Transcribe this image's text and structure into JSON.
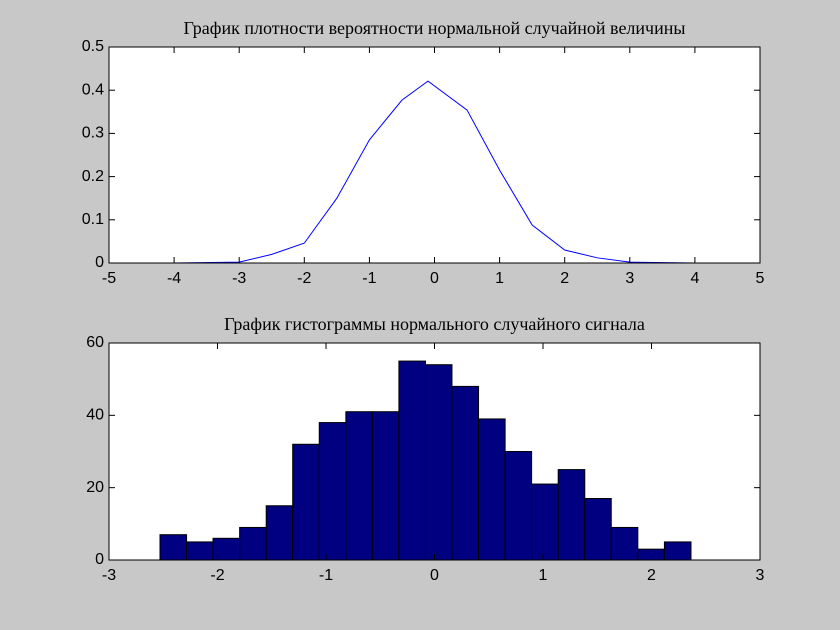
{
  "chart_data": [
    {
      "type": "line",
      "title": "График плотности вероятности нормальной случайной величины",
      "x": [
        -5,
        -4,
        -3,
        -2.5,
        -2,
        -1.5,
        -1,
        -0.5,
        -0.1,
        0.5,
        1,
        1.5,
        2,
        2.5,
        3,
        4,
        5
      ],
      "values": [
        0,
        0,
        0.002,
        0.02,
        0.046,
        0.15,
        0.285,
        0.377,
        0.421,
        0.354,
        0.215,
        0.088,
        0.03,
        0.012,
        0.002,
        0,
        0
      ],
      "color": "#0000ff",
      "xlim": [
        -5,
        5
      ],
      "xticks": [
        -5,
        -4,
        -3,
        -2,
        -1,
        0,
        1,
        2,
        3,
        4,
        5
      ],
      "ylim": [
        0,
        0.5
      ],
      "yticks": [
        0,
        0.1,
        0.2,
        0.3,
        0.4,
        0.5
      ]
    },
    {
      "type": "histogram",
      "title": "График гистограммы нормального случайного сигнала",
      "bins": [
        -2.53,
        -2.285,
        -2.041,
        -1.796,
        -1.551,
        -1.307,
        -1.062,
        -0.817,
        -0.573,
        -0.328,
        -0.083,
        0.161,
        0.406,
        0.651,
        0.895,
        1.14,
        1.385,
        1.629,
        1.874,
        2.119,
        2.364
      ],
      "values": [
        7,
        5,
        6,
        9,
        15,
        32,
        38,
        41,
        41,
        55,
        54,
        48,
        39,
        30,
        21,
        25,
        17,
        9,
        3,
        5
      ],
      "color": "#000080",
      "xlim": [
        -3,
        3
      ],
      "xticks": [
        -3,
        -2,
        -1,
        0,
        1,
        2,
        3
      ],
      "ylim": [
        0,
        60
      ],
      "yticks": [
        0,
        20,
        40,
        60
      ]
    }
  ]
}
